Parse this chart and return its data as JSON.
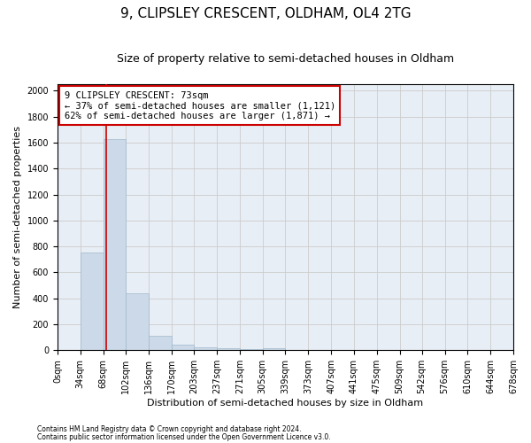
{
  "title": "9, CLIPSLEY CRESCENT, OLDHAM, OL4 2TG",
  "subtitle": "Size of property relative to semi-detached houses in Oldham",
  "xlabel": "Distribution of semi-detached houses by size in Oldham",
  "ylabel": "Number of semi-detached properties",
  "footnote1": "Contains HM Land Registry data © Crown copyright and database right 2024.",
  "footnote2": "Contains public sector information licensed under the Open Government Licence v3.0.",
  "annotation_title": "9 CLIPSLEY CRESCENT: 73sqm",
  "annotation_line1": "← 37% of semi-detached houses are smaller (1,121)",
  "annotation_line2": "62% of semi-detached houses are larger (1,871) →",
  "property_size": 73,
  "bar_edges": [
    0,
    34,
    68,
    102,
    136,
    170,
    203,
    237,
    271,
    305,
    339,
    373,
    407,
    441,
    475,
    509,
    542,
    576,
    610,
    644,
    678
  ],
  "bar_heights": [
    0,
    750,
    1630,
    440,
    110,
    40,
    25,
    15,
    10,
    15,
    0,
    0,
    0,
    0,
    0,
    0,
    0,
    0,
    0,
    0
  ],
  "bar_color": "#ccd9e8",
  "bar_edge_color": "#a0b8cc",
  "red_line_color": "#cc0000",
  "annotation_box_color": "#cc0000",
  "ylim": [
    0,
    2050
  ],
  "yticks": [
    0,
    200,
    400,
    600,
    800,
    1000,
    1200,
    1400,
    1600,
    1800,
    2000
  ],
  "grid_color": "#cccccc",
  "bg_color": "#e8eef5",
  "title_fontsize": 11,
  "subtitle_fontsize": 9,
  "tick_fontsize": 7,
  "label_fontsize": 8,
  "annotation_fontsize": 7.5,
  "footnote_fontsize": 5.5
}
